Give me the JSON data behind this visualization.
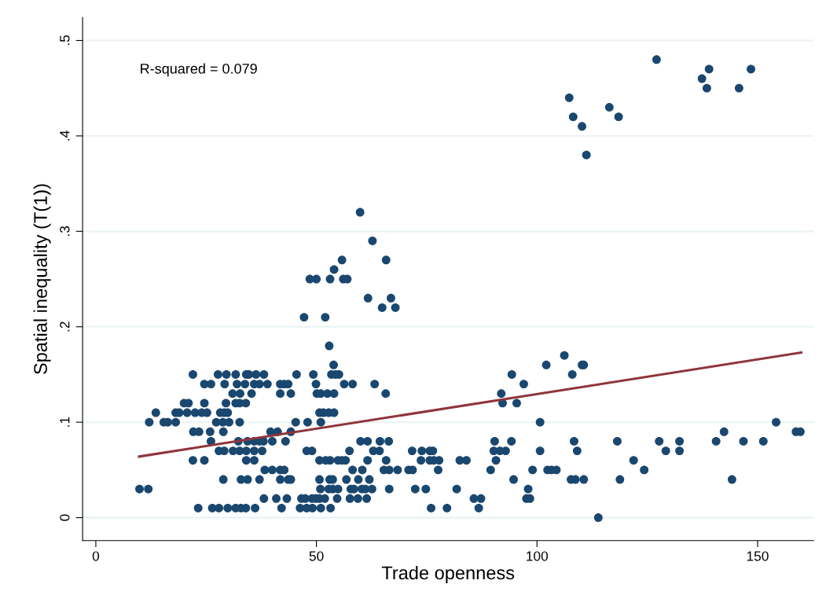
{
  "chart_data": {
    "type": "scatter",
    "xlabel": "Trade openness",
    "ylabel": "Spatial inequality (T(1))",
    "annotations": [
      "R-squared = 0.079"
    ],
    "xlim": [
      -3,
      162.7
    ],
    "ylim": [
      -0.024,
      0.524
    ],
    "xticks": [
      0,
      50,
      100,
      150
    ],
    "yticks": [
      0,
      {
        "value": 0.1,
        "label": ".1"
      },
      {
        "value": 0.2,
        "label": ".2"
      },
      {
        "value": 0.3,
        "label": ".3"
      },
      {
        "value": 0.4,
        "label": ".4"
      },
      {
        "value": 0.5,
        "label": ".5"
      }
    ],
    "grid": "y",
    "series": [
      {
        "marker": "circle",
        "color": "#1a476f",
        "x": [
          113.9,
          23.2,
          26.4,
          27.9,
          29.9,
          31.7,
          32.9,
          34.0,
          36.1,
          42.1,
          46.3,
          47.8,
          49.1,
          51.0,
          53.2,
          76.0,
          79.6,
          86.8,
          38.1,
          40.9,
          43.3,
          46.6,
          47.5,
          49.0,
          49.9,
          50.7,
          51.9,
          54.7,
          57.6,
          59.4,
          61.4,
          85.7,
          87.3,
          97.6,
          98.4,
          9.9,
          11.9,
          50.9,
          52.8,
          53.7,
          54.9,
          57.8,
          58.5,
          60.3,
          61.1,
          62.6,
          66.5,
          72.4,
          74.8,
          81.8,
          98.0,
          28.9,
          32.9,
          34.4,
          37.1,
          41.8,
          43.6,
          44.2,
          50.7,
          53.0,
          53.7,
          56.8,
          59.5,
          62.0,
          94.7,
          107.7,
          108.7,
          110.6,
          118.8,
          144.2,
          38.3,
          40.0,
          41.8,
          42.7,
          58.2,
          60.4,
          65.3,
          66.5,
          68.4,
          70.9,
          71.8,
          77.6,
          89.5,
          99.0,
          102.4,
          103.3,
          104.4,
          124.3,
          22.0,
          24.6,
          34.1,
          35.9,
          50.7,
          52.1,
          53.1,
          54.9,
          55.8,
          56.6,
          61.6,
          65.8,
          73.7,
          75.7,
          76.6,
          77.8,
          82.5,
          84.0,
          90.7,
          121.9,
          27.9,
          29.1,
          31.1,
          32.6,
          34.1,
          35.9,
          37.7,
          47.8,
          49.0,
          57.5,
          62.9,
          64.3,
          71.7,
          73.9,
          75.7,
          76.4,
          90.2,
          91.6,
          92.9,
          100.7,
          109.1,
          129.2,
          132.3,
          26.1,
          32.3,
          34.4,
          35.9,
          37.1,
          38.0,
          40.0,
          43.0,
          60.0,
          61.6,
          64.4,
          66.4,
          90.4,
          94.2,
          108.4,
          118.2,
          127.7,
          132.3,
          140.6,
          146.8,
          151.3,
          22.1,
          23.4,
          25.9,
          28.9,
          39.6,
          41.2,
          44.2,
          142.4,
          158.7,
          159.7,
          12.1,
          15.4,
          16.3,
          18.1,
          27.3,
          28.8,
          30.2,
          32.6,
          45.3,
          48.0,
          51.0,
          100.7,
          154.2,
          13.6,
          18.1,
          18.9,
          20.7,
          22.5,
          24.0,
          25.2,
          28.2,
          29.1,
          29.9,
          50.7,
          51.6,
          52.8,
          54.0,
          20.0,
          21.0,
          24.6,
          29.5,
          31.7,
          32.6,
          34.0,
          92.2,
          95.4,
          31.0,
          32.7,
          35.3,
          41.8,
          44.2,
          50.1,
          51.0,
          52.5,
          54.0,
          65.7,
          91.9,
          24.6,
          26.1,
          29.2,
          32.0,
          33.8,
          35.9,
          37.1,
          38.9,
          41.8,
          42.7,
          43.6,
          49.9,
          56.3,
          58.2,
          63.2,
          97.0,
          22.0,
          27.7,
          29.6,
          31.7,
          34.1,
          34.7,
          36.3,
          38.1,
          45.5,
          49.3,
          53.4,
          54.3,
          55.1,
          94.3,
          108.0,
          53.9,
          102.1,
          110.2,
          110.6,
          106.2,
          52.9,
          47.2,
          52.0,
          64.9,
          67.9,
          61.7,
          66.9,
          48.5,
          50.0,
          53.1,
          56.1,
          57.0,
          54.0,
          55.8,
          65.8,
          62.7,
          59.9,
          111.2,
          110.2,
          108.2,
          118.5,
          116.4,
          107.3,
          138.5,
          145.8,
          137.4,
          139.0,
          148.5,
          127.1
        ],
        "values": [
          0.0,
          0.01,
          0.01,
          0.01,
          0.01,
          0.01,
          0.01,
          0.01,
          0.01,
          0.01,
          0.01,
          0.01,
          0.01,
          0.01,
          0.01,
          0.01,
          0.01,
          0.01,
          0.02,
          0.02,
          0.02,
          0.02,
          0.02,
          0.02,
          0.02,
          0.02,
          0.02,
          0.02,
          0.02,
          0.02,
          0.02,
          0.02,
          0.02,
          0.02,
          0.02,
          0.03,
          0.03,
          0.03,
          0.03,
          0.03,
          0.03,
          0.03,
          0.03,
          0.03,
          0.03,
          0.03,
          0.03,
          0.03,
          0.03,
          0.03,
          0.03,
          0.04,
          0.04,
          0.04,
          0.04,
          0.04,
          0.04,
          0.04,
          0.04,
          0.04,
          0.04,
          0.04,
          0.04,
          0.04,
          0.04,
          0.04,
          0.04,
          0.04,
          0.04,
          0.04,
          0.05,
          0.05,
          0.05,
          0.05,
          0.05,
          0.05,
          0.05,
          0.05,
          0.05,
          0.05,
          0.05,
          0.05,
          0.05,
          0.05,
          0.05,
          0.05,
          0.05,
          0.05,
          0.06,
          0.06,
          0.06,
          0.06,
          0.06,
          0.06,
          0.06,
          0.06,
          0.06,
          0.06,
          0.06,
          0.06,
          0.06,
          0.06,
          0.06,
          0.06,
          0.06,
          0.06,
          0.06,
          0.06,
          0.07,
          0.07,
          0.07,
          0.07,
          0.07,
          0.07,
          0.07,
          0.07,
          0.07,
          0.07,
          0.07,
          0.07,
          0.07,
          0.07,
          0.07,
          0.07,
          0.07,
          0.07,
          0.07,
          0.07,
          0.07,
          0.07,
          0.07,
          0.08,
          0.08,
          0.08,
          0.08,
          0.08,
          0.08,
          0.08,
          0.08,
          0.08,
          0.08,
          0.08,
          0.08,
          0.08,
          0.08,
          0.08,
          0.08,
          0.08,
          0.08,
          0.08,
          0.08,
          0.08,
          0.09,
          0.09,
          0.09,
          0.09,
          0.09,
          0.09,
          0.09,
          0.09,
          0.09,
          0.09,
          0.1,
          0.1,
          0.1,
          0.1,
          0.1,
          0.1,
          0.1,
          0.1,
          0.1,
          0.1,
          0.1,
          0.1,
          0.1,
          0.11,
          0.11,
          0.11,
          0.11,
          0.11,
          0.11,
          0.11,
          0.11,
          0.11,
          0.11,
          0.11,
          0.11,
          0.11,
          0.11,
          0.12,
          0.12,
          0.12,
          0.12,
          0.12,
          0.12,
          0.12,
          0.12,
          0.12,
          0.13,
          0.13,
          0.13,
          0.13,
          0.13,
          0.13,
          0.13,
          0.13,
          0.13,
          0.13,
          0.13,
          0.14,
          0.14,
          0.14,
          0.14,
          0.14,
          0.14,
          0.14,
          0.14,
          0.14,
          0.14,
          0.14,
          0.14,
          0.14,
          0.14,
          0.14,
          0.14,
          0.15,
          0.15,
          0.15,
          0.15,
          0.15,
          0.15,
          0.15,
          0.15,
          0.15,
          0.15,
          0.15,
          0.15,
          0.15,
          0.15,
          0.15,
          0.16,
          0.16,
          0.16,
          0.16,
          0.17,
          0.18,
          0.21,
          0.21,
          0.22,
          0.22,
          0.23,
          0.23,
          0.25,
          0.25,
          0.25,
          0.25,
          0.25,
          0.26,
          0.27,
          0.27,
          0.29,
          0.32,
          0.38,
          0.41,
          0.42,
          0.42,
          0.43,
          0.44,
          0.45,
          0.45,
          0.46,
          0.47,
          0.47,
          0.48
        ]
      },
      {
        "type": "line",
        "marker": "none",
        "color": "#90353b",
        "x": [
          9.8,
          159.9
        ],
        "values": [
          0.064,
          0.173
        ]
      }
    ]
  }
}
